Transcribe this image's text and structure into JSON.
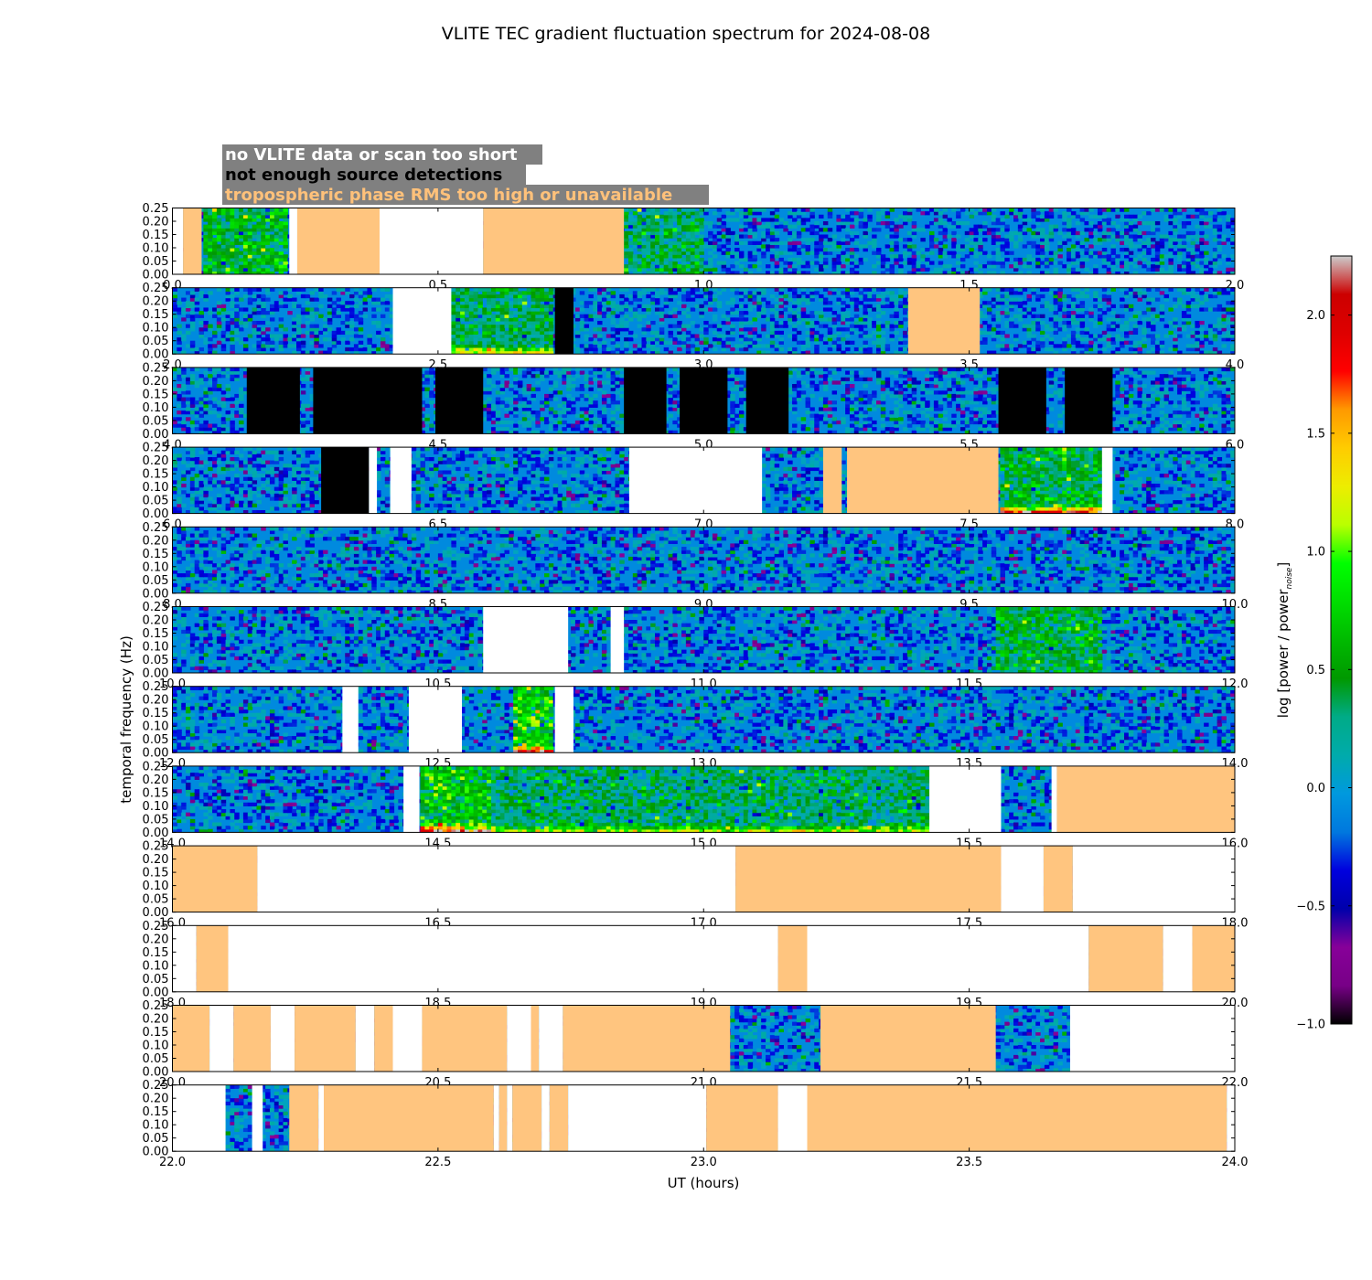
{
  "chart_data": {
    "type": "heatmap",
    "title": "VLITE TEC gradient fluctuation spectrum for 2024-08-08",
    "xlabel": "UT (hours)",
    "ylabel": "temporal frequency (Hz)",
    "ylim": [
      0,
      0.25
    ],
    "y_ticks": [
      "0.00",
      "0.05",
      "0.10",
      "0.15",
      "0.20",
      "0.25"
    ],
    "colorbar": {
      "label": "log [power / power",
      "label_sub": "noise",
      "label_end": "]",
      "range": [
        -1.0,
        2.25
      ],
      "ticks": [
        "−1.0",
        "−0.5",
        "0.0",
        "0.5",
        "1.0",
        "1.5",
        "2.0"
      ],
      "tick_values": [
        -1.0,
        -0.5,
        0.0,
        0.5,
        1.0,
        1.5,
        2.0
      ]
    },
    "legend": {
      "placement": "top-left",
      "entries": [
        {
          "label": "no VLITE data or scan too short",
          "category": "no_data",
          "text_color": "#ffffff"
        },
        {
          "label": "not enough source detections",
          "category": "few_detections",
          "text_color": "#000000"
        },
        {
          "label": "tropospheric phase RMS too high or unavailable",
          "category": "tropo",
          "text_color": "#ffc17a"
        }
      ]
    },
    "category_colors": {
      "no_data": "#ffffff",
      "few_detections": "#000000",
      "tropo": "#ffc57f"
    },
    "panels": [
      {
        "xlim": [
          0,
          2
        ],
        "ticks": [
          "0.0",
          "0.5",
          "1.0",
          "1.5",
          "2.0"
        ],
        "tick_values": [
          0,
          0.5,
          1.0,
          1.5,
          2.0
        ],
        "masks": [
          [
            0.0,
            0.02,
            "no_data"
          ],
          [
            0.02,
            0.055,
            "tropo"
          ],
          [
            0.22,
            0.235,
            "no_data"
          ],
          [
            0.235,
            0.39,
            "tropo"
          ],
          [
            0.39,
            0.585,
            "no_data"
          ],
          [
            0.585,
            0.85,
            "tropo"
          ]
        ],
        "active": [
          [
            0.055,
            0.22,
            0.6,
            0.08
          ],
          [
            0.85,
            1.0,
            0.45,
            0.04
          ]
        ]
      },
      {
        "xlim": [
          2,
          4
        ],
        "ticks": [
          "2.0",
          "2.5",
          "3.0",
          "3.5",
          "4.0"
        ],
        "tick_values": [
          2.0,
          2.5,
          3.0,
          3.5,
          4.0
        ],
        "masks": [
          [
            2.415,
            2.525,
            "no_data"
          ],
          [
            2.72,
            2.755,
            "few_detections"
          ],
          [
            3.385,
            3.52,
            "tropo"
          ]
        ],
        "active": [
          [
            2.525,
            2.72,
            0.45,
            1.2
          ]
        ]
      },
      {
        "xlim": [
          4,
          6
        ],
        "ticks": [
          "4.0",
          "4.5",
          "5.0",
          "5.5",
          "6.0"
        ],
        "tick_values": [
          4.0,
          4.5,
          5.0,
          5.5,
          6.0
        ],
        "masks": [
          [
            4.14,
            4.24,
            "few_detections"
          ],
          [
            4.265,
            4.47,
            "few_detections"
          ],
          [
            4.495,
            4.585,
            "few_detections"
          ],
          [
            4.85,
            4.93,
            "few_detections"
          ],
          [
            4.955,
            5.045,
            "few_detections"
          ],
          [
            5.08,
            5.16,
            "few_detections"
          ],
          [
            5.555,
            5.645,
            "few_detections"
          ],
          [
            5.68,
            5.77,
            "few_detections"
          ]
        ],
        "active": []
      },
      {
        "xlim": [
          6,
          8
        ],
        "ticks": [
          "6.0",
          "6.5",
          "7.0",
          "7.5",
          "8.0"
        ],
        "tick_values": [
          6.0,
          6.5,
          7.0,
          7.5,
          8.0
        ],
        "masks": [
          [
            6.28,
            6.37,
            "few_detections"
          ],
          [
            6.37,
            6.385,
            "no_data"
          ],
          [
            6.41,
            6.45,
            "no_data"
          ],
          [
            6.86,
            7.11,
            "no_data"
          ],
          [
            7.225,
            7.26,
            "tropo"
          ],
          [
            7.27,
            7.555,
            "tropo"
          ],
          [
            7.75,
            7.77,
            "no_data"
          ]
        ],
        "active": [
          [
            7.555,
            7.75,
            0.55,
            1.85
          ]
        ]
      },
      {
        "xlim": [
          8,
          10
        ],
        "ticks": [
          "8.0",
          "8.5",
          "9.0",
          "9.5",
          "10.0"
        ],
        "tick_values": [
          8.0,
          8.5,
          9.0,
          9.5,
          10.0
        ],
        "masks": [],
        "active": []
      },
      {
        "xlim": [
          10,
          12
        ],
        "ticks": [
          "10.0",
          "10.5",
          "11.0",
          "11.5",
          "12.0"
        ],
        "tick_values": [
          10.0,
          10.5,
          11.0,
          11.5,
          12.0
        ],
        "masks": [
          [
            10.585,
            10.745,
            "no_data"
          ],
          [
            10.825,
            10.85,
            "no_data"
          ]
        ],
        "active": [
          [
            11.55,
            11.75,
            0.55,
            0.04
          ]
        ]
      },
      {
        "xlim": [
          12,
          14
        ],
        "ticks": [
          "12.0",
          "12.5",
          "13.0",
          "13.5",
          "14.0"
        ],
        "tick_values": [
          12.0,
          12.5,
          13.0,
          13.5,
          14.0
        ],
        "masks": [
          [
            12.32,
            12.35,
            "no_data"
          ],
          [
            12.445,
            12.545,
            "no_data"
          ],
          [
            12.72,
            12.755,
            "no_data"
          ]
        ],
        "active": [
          [
            12.64,
            12.72,
            0.8,
            1.6
          ]
        ]
      },
      {
        "xlim": [
          14,
          16
        ],
        "ticks": [
          "14.0",
          "14.5",
          "15.0",
          "15.5",
          "16.0"
        ],
        "tick_values": [
          14.0,
          14.5,
          15.0,
          15.5,
          16.0
        ],
        "masks": [
          [
            14.435,
            14.465,
            "no_data"
          ],
          [
            15.425,
            15.56,
            "no_data"
          ],
          [
            15.655,
            15.665,
            "no_data"
          ],
          [
            15.665,
            16.0,
            "tropo"
          ]
        ],
        "active": [
          [
            14.465,
            14.6,
            0.75,
            1.75
          ],
          [
            14.6,
            15.425,
            0.4,
            1.0
          ]
        ]
      },
      {
        "xlim": [
          16,
          18
        ],
        "ticks": [
          "16.0",
          "16.5",
          "17.0",
          "17.5",
          "18.0"
        ],
        "tick_values": [
          16.0,
          16.5,
          17.0,
          17.5,
          18.0
        ],
        "masks": [
          [
            16.0,
            16.16,
            "tropo"
          ],
          [
            16.16,
            17.06,
            "no_data"
          ],
          [
            17.06,
            17.56,
            "tropo"
          ],
          [
            17.56,
            17.64,
            "no_data"
          ],
          [
            17.64,
            17.695,
            "tropo"
          ],
          [
            17.695,
            18.0,
            "no_data"
          ]
        ],
        "active": []
      },
      {
        "xlim": [
          18,
          20
        ],
        "ticks": [
          "18.0",
          "18.5",
          "19.0",
          "19.5",
          "20.0"
        ],
        "tick_values": [
          18.0,
          18.5,
          19.0,
          19.5,
          20.0
        ],
        "masks": [
          [
            18.0,
            18.045,
            "no_data"
          ],
          [
            18.045,
            18.105,
            "tropo"
          ],
          [
            18.105,
            19.14,
            "no_data"
          ],
          [
            19.14,
            19.195,
            "tropo"
          ],
          [
            19.195,
            19.725,
            "no_data"
          ],
          [
            19.725,
            19.865,
            "tropo"
          ],
          [
            19.865,
            19.92,
            "no_data"
          ],
          [
            19.92,
            20.0,
            "tropo"
          ]
        ],
        "active": []
      },
      {
        "xlim": [
          20,
          22
        ],
        "ticks": [
          "20.0",
          "20.5",
          "21.0",
          "21.5",
          "22.0"
        ],
        "tick_values": [
          20.0,
          20.5,
          21.0,
          21.5,
          22.0
        ],
        "masks": [
          [
            20.0,
            20.07,
            "tropo"
          ],
          [
            20.07,
            20.115,
            "no_data"
          ],
          [
            20.115,
            20.185,
            "tropo"
          ],
          [
            20.185,
            20.23,
            "no_data"
          ],
          [
            20.23,
            20.345,
            "tropo"
          ],
          [
            20.345,
            20.38,
            "no_data"
          ],
          [
            20.38,
            20.415,
            "tropo"
          ],
          [
            20.415,
            20.47,
            "no_data"
          ],
          [
            20.47,
            20.63,
            "tropo"
          ],
          [
            20.63,
            20.675,
            "no_data"
          ],
          [
            20.675,
            20.69,
            "tropo"
          ],
          [
            20.69,
            20.735,
            "no_data"
          ],
          [
            20.735,
            21.05,
            "tropo"
          ],
          [
            21.22,
            21.55,
            "tropo"
          ],
          [
            21.69,
            22.0,
            "no_data"
          ]
        ],
        "active": []
      },
      {
        "xlim": [
          22,
          24
        ],
        "ticks": [
          "22.0",
          "22.5",
          "23.0",
          "23.5",
          "24.0"
        ],
        "tick_values": [
          22.0,
          22.5,
          23.0,
          23.5,
          24.0
        ],
        "masks": [
          [
            22.0,
            22.1,
            "no_data"
          ],
          [
            22.15,
            22.17,
            "no_data"
          ],
          [
            22.22,
            22.275,
            "tropo"
          ],
          [
            22.275,
            22.285,
            "no_data"
          ],
          [
            22.285,
            22.605,
            "tropo"
          ],
          [
            22.605,
            22.615,
            "no_data"
          ],
          [
            22.615,
            22.63,
            "tropo"
          ],
          [
            22.63,
            22.64,
            "no_data"
          ],
          [
            22.64,
            22.695,
            "tropo"
          ],
          [
            22.695,
            22.71,
            "no_data"
          ],
          [
            22.71,
            22.745,
            "tropo"
          ],
          [
            22.745,
            23.005,
            "no_data"
          ],
          [
            23.005,
            23.14,
            "tropo"
          ],
          [
            23.14,
            23.195,
            "no_data"
          ],
          [
            23.195,
            23.985,
            "tropo"
          ],
          [
            23.985,
            24.0,
            "no_data"
          ]
        ],
        "active": []
      }
    ]
  }
}
